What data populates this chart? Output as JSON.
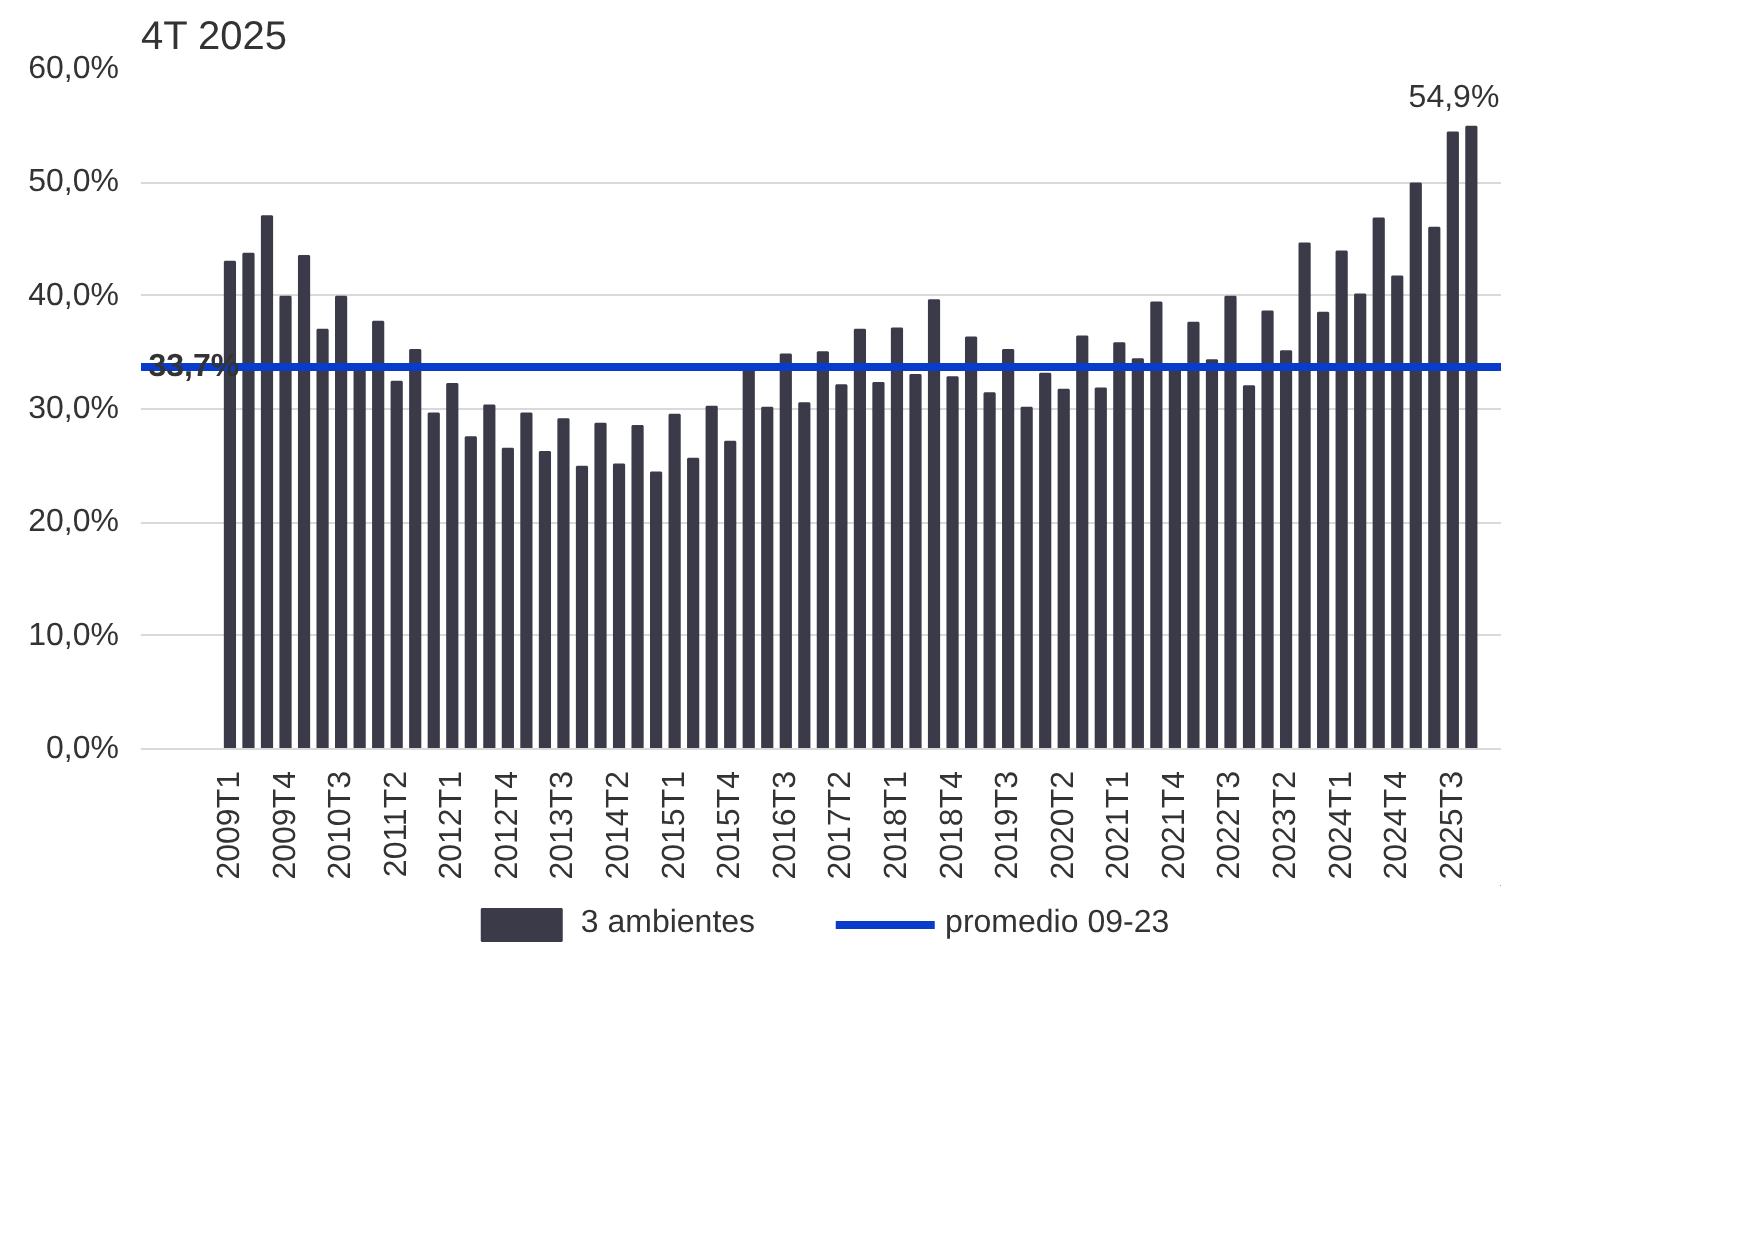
{
  "chart_data": {
    "type": "bar",
    "title": "4T 2025",
    "categories": [
      "2009T1",
      null,
      null,
      "2009T4",
      null,
      null,
      "2010T3",
      null,
      null,
      "2011T2",
      null,
      null,
      "2012T1",
      null,
      null,
      "2012T4",
      null,
      null,
      "2013T3",
      null,
      null,
      "2014T2",
      null,
      null,
      "2015T1",
      null,
      null,
      "2015T4",
      null,
      null,
      "2016T3",
      null,
      null,
      "2017T2",
      null,
      null,
      "2018T1",
      null,
      null,
      "2018T4",
      null,
      null,
      "2019T3",
      null,
      null,
      "2020T2",
      null,
      null,
      "2021T1",
      null,
      null,
      "2021T4",
      null,
      null,
      "2022T3",
      null,
      null,
      "2023T2",
      null,
      null,
      "2024T1",
      null,
      null,
      "2024T4",
      null,
      null,
      "2025T3",
      null
    ],
    "series": [
      {
        "name": "3 ambientes",
        "color": "#3a3a48",
        "values": [
          43.0,
          43.7,
          47.0,
          39.9,
          43.5,
          37.0,
          39.9,
          33.8,
          37.7,
          32.4,
          35.2,
          29.6,
          32.2,
          27.5,
          30.3,
          26.5,
          29.6,
          26.2,
          29.1,
          24.9,
          28.7,
          25.1,
          28.5,
          24.4,
          29.5,
          25.6,
          30.2,
          27.1,
          33.5,
          30.1,
          34.8,
          30.5,
          35.0,
          32.1,
          37.0,
          32.3,
          37.1,
          33.0,
          39.6,
          32.8,
          36.3,
          31.4,
          35.2,
          30.1,
          33.1,
          31.7,
          36.4,
          31.8,
          35.8,
          34.4,
          39.4,
          33.5,
          37.6,
          34.3,
          39.9,
          32.0,
          38.6,
          35.1,
          44.6,
          38.5,
          43.9,
          40.1,
          46.8,
          41.7,
          49.9,
          46.0,
          54.4,
          54.9
        ],
        "value_labels": [
          null,
          null,
          null,
          null,
          null,
          null,
          null,
          null,
          null,
          null,
          null,
          null,
          null,
          null,
          null,
          null,
          null,
          null,
          null,
          null,
          null,
          null,
          null,
          null,
          null,
          null,
          null,
          null,
          null,
          null,
          null,
          null,
          null,
          null,
          null,
          null,
          null,
          null,
          null,
          null,
          null,
          null,
          null,
          null,
          null,
          null,
          null,
          null,
          null,
          null,
          null,
          null,
          null,
          null,
          null,
          null,
          null,
          null,
          null,
          null,
          null,
          null,
          null,
          null,
          null,
          null,
          null,
          "54,9%"
        ]
      }
    ],
    "ref_lines": [
      {
        "axis": "y",
        "value": 33.7,
        "label": "promedio 09-23",
        "color": "#0a3ccc",
        "line_style": "solid"
      }
    ],
    "annotations": [
      {
        "text": "33,7%",
        "x": "2009T1",
        "y": 33.7
      }
    ],
    "ylim": [
      0,
      60
    ],
    "yticks": [
      {
        "value": 0,
        "label": "0,0%"
      },
      {
        "value": 10,
        "label": "10,0%"
      },
      {
        "value": 20,
        "label": "20,0%"
      },
      {
        "value": 30,
        "label": "30,0%"
      },
      {
        "value": 40,
        "label": "40,0%"
      },
      {
        "value": 50,
        "label": "50,0%"
      },
      {
        "value": 60,
        "label": "60,0%"
      }
    ],
    "grid": "y",
    "legend": "bottom"
  }
}
